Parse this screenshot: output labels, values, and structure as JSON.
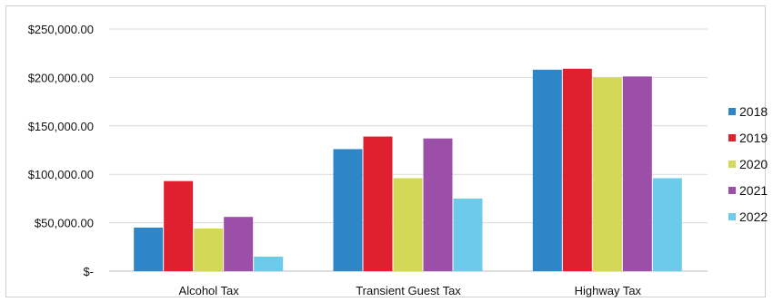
{
  "chart_data": {
    "type": "bar",
    "title": "",
    "xlabel": "",
    "ylabel": "",
    "categories": [
      "Alcohol Tax",
      "Transient Guest Tax",
      "Highway Tax"
    ],
    "series": [
      {
        "name": "2018",
        "color": "#2E86C8",
        "values": [
          45000,
          126000,
          208000
        ]
      },
      {
        "name": "2019",
        "color": "#E0202E",
        "values": [
          93000,
          139000,
          209000
        ]
      },
      {
        "name": "2020",
        "color": "#D3D957",
        "values": [
          44000,
          96000,
          200000
        ]
      },
      {
        "name": "2021",
        "color": "#9B4FA8",
        "values": [
          56000,
          137000,
          201000
        ]
      },
      {
        "name": "2022",
        "color": "#6CCBEA",
        "values": [
          15000,
          75000,
          96000
        ]
      }
    ],
    "ylim": [
      0,
      250000
    ],
    "y_ticks": [
      0,
      50000,
      100000,
      150000,
      200000,
      250000
    ],
    "y_tick_labels": [
      "$-",
      "$50,000.00",
      "$100,000.00",
      "$150,000.00",
      "$200,000.00",
      "$250,000.00"
    ],
    "grid": true,
    "legend_position": "right"
  }
}
